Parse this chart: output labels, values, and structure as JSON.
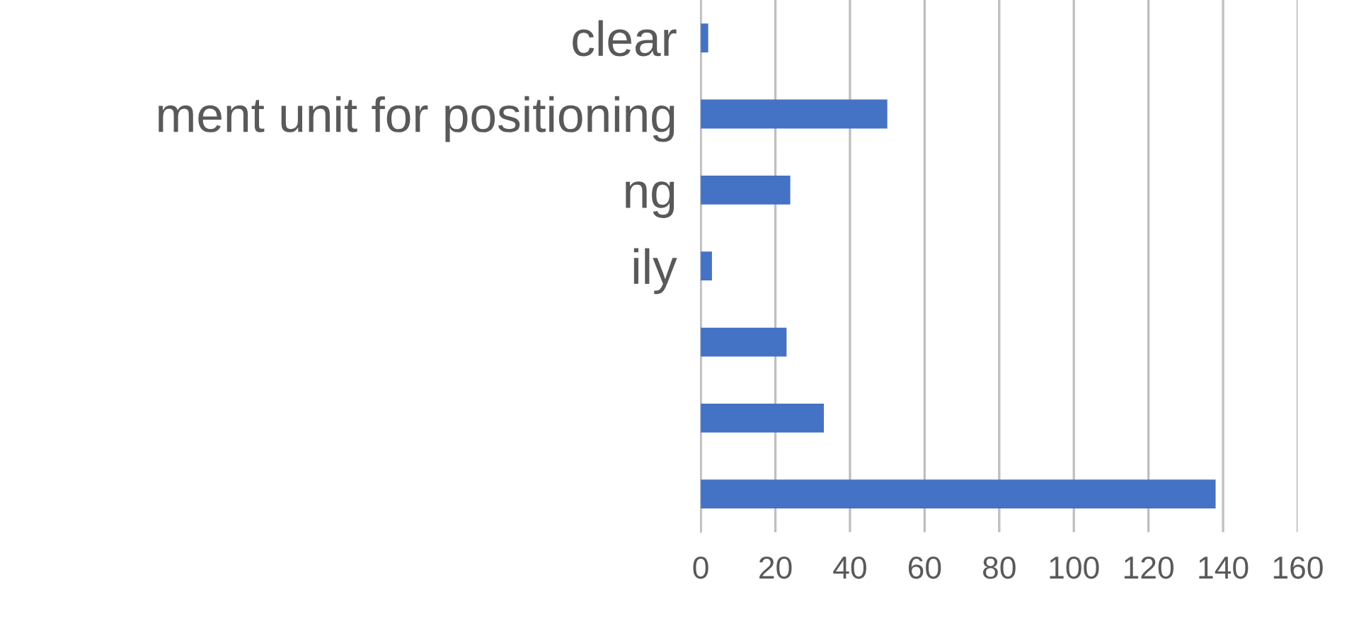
{
  "chart_data": {
    "type": "bar",
    "orientation": "horizontal",
    "categories": [
      "clear",
      "ment unit for positioning",
      "ng",
      "ily",
      null,
      null,
      null
    ],
    "values": [
      2,
      50,
      24,
      3,
      23,
      33,
      138
    ],
    "color": "#4472c4",
    "xlim": [
      0,
      160
    ],
    "xticks": [
      0,
      20,
      40,
      60,
      80,
      100,
      120,
      140,
      160
    ],
    "grid": "x"
  }
}
